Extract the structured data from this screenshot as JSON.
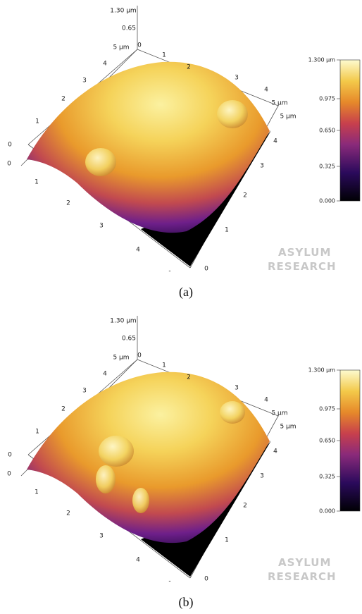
{
  "panels": [
    {
      "caption": "(a)",
      "axis_labels": [
        "1.30 µm",
        "0.65",
        "5 µm",
        "0",
        "1",
        "2",
        "3",
        "4",
        "5 µm",
        "4",
        "3",
        "2",
        "1",
        "0",
        "0",
        "1",
        "2",
        "3",
        "4",
        "-",
        "0",
        "1",
        "2",
        "3",
        "4",
        "5 µm"
      ],
      "colorbar_labels": [
        "1.300 µm",
        "0.975",
        "0.650",
        "0.325",
        "0.000"
      ],
      "logo": [
        "ASYLUM",
        "RESEARCH"
      ]
    },
    {
      "caption": "(b)",
      "axis_labels": [
        "1.30 µm",
        "0.65",
        "5 µm",
        "0",
        "1",
        "2",
        "3",
        "4",
        "5 µm",
        "4",
        "3",
        "2",
        "1",
        "0",
        "0",
        "1",
        "2",
        "3",
        "4",
        "-",
        "0",
        "1",
        "2",
        "3",
        "4",
        "5 µm"
      ],
      "colorbar_labels": [
        "1.300 µm",
        "0.975",
        "0.650",
        "0.325",
        "0.000"
      ],
      "logo": [
        "ASYLUM",
        "RESEARCH"
      ]
    }
  ]
}
